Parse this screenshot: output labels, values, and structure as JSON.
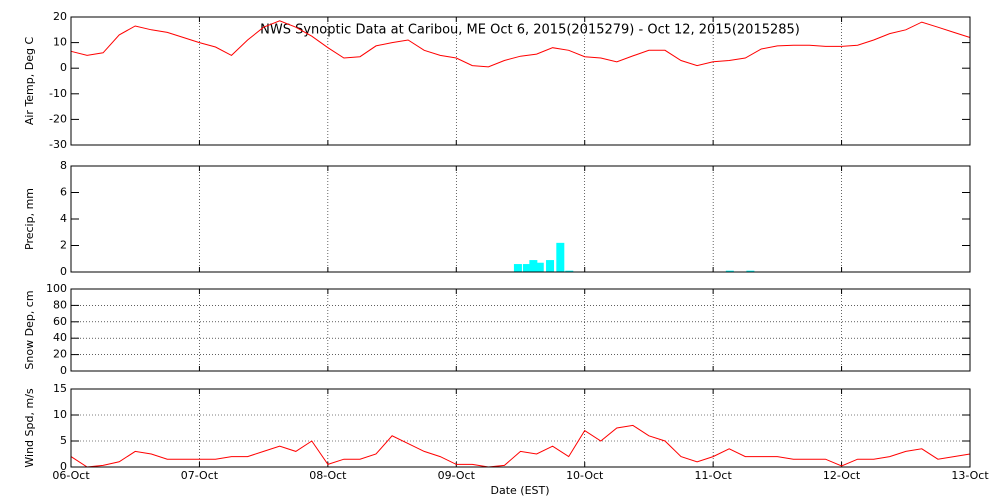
{
  "chart_data": [
    {
      "type": "line",
      "title": "NWS Synoptic Data at Caribou, ME   Oct  6, 2015(2015279) - Oct 12, 2015(2015285)",
      "ylabel": "Air Temp, Deg C",
      "ylim": [
        -30,
        20
      ],
      "yticks": [
        -30,
        -20,
        -10,
        0,
        10,
        20
      ],
      "xlim": [
        0,
        7
      ],
      "xticks": [
        0,
        1,
        2,
        3,
        4,
        5,
        6,
        7
      ],
      "grid": "x",
      "color": "#ff0000",
      "x": [
        0,
        0.125,
        0.25,
        0.375,
        0.5,
        0.625,
        0.75,
        0.875,
        1,
        1.125,
        1.25,
        1.375,
        1.5,
        1.625,
        1.75,
        1.875,
        2,
        2.125,
        2.25,
        2.375,
        2.5,
        2.625,
        2.75,
        2.875,
        3,
        3.125,
        3.25,
        3.375,
        3.5,
        3.625,
        3.75,
        3.875,
        4,
        4.125,
        4.25,
        4.375,
        4.5,
        4.625,
        4.75,
        4.875,
        5,
        5.125,
        5.25,
        5.375,
        5.5,
        5.625,
        5.75,
        5.875,
        6,
        6.125,
        6.25,
        6.375,
        6.5,
        6.625,
        6.75,
        6.875,
        7
      ],
      "values": [
        6.6,
        5,
        6,
        13,
        16.5,
        15,
        14,
        12,
        10,
        8.3,
        5,
        11,
        16,
        18.5,
        16,
        12.5,
        8,
        4,
        4.5,
        8.7,
        10,
        11,
        7,
        5,
        4,
        1,
        0.5,
        3,
        4.7,
        5.5,
        8,
        7,
        4.5,
        4,
        2.5,
        4.8,
        7,
        7,
        3,
        1,
        2.5,
        3,
        4,
        7.5,
        8.7,
        9,
        9,
        8.5,
        8.5,
        9,
        11,
        13.5,
        15,
        18,
        16,
        14,
        12
      ]
    },
    {
      "type": "bar",
      "ylabel": "Precip, mm",
      "ylim": [
        0,
        8
      ],
      "yticks": [
        0,
        2,
        4,
        6,
        8
      ],
      "xlim": [
        0,
        7
      ],
      "xticks": [
        0,
        1,
        2,
        3,
        4,
        5,
        6,
        7
      ],
      "grid": "x",
      "color": "#00ffff",
      "x": [
        3.48,
        3.55,
        3.6,
        3.65,
        3.73,
        3.81,
        3.88,
        5.13,
        5.29
      ],
      "values": [
        0.6,
        0.6,
        0.9,
        0.7,
        0.9,
        2.2,
        0.1,
        0.1,
        0.1
      ]
    },
    {
      "type": "line",
      "ylabel": "Snow Dep, cm",
      "ylim": [
        0,
        100
      ],
      "yticks": [
        0,
        20,
        40,
        60,
        80,
        100
      ],
      "xlim": [
        0,
        7
      ],
      "xticks": [
        0,
        1,
        2,
        3,
        4,
        5,
        6,
        7
      ],
      "grid": "both",
      "color": "#ff0000",
      "x": [],
      "values": []
    },
    {
      "type": "line",
      "ylabel": "Wind Spd, m/s",
      "xlabel": "Date (EST)",
      "ylim": [
        0,
        15
      ],
      "yticks": [
        0,
        5,
        10,
        15
      ],
      "xlim": [
        0,
        7
      ],
      "xticks": [
        {
          "value": 0,
          "label": "06-Oct"
        },
        {
          "value": 1,
          "label": "07-Oct"
        },
        {
          "value": 2,
          "label": "08-Oct"
        },
        {
          "value": 3,
          "label": "09-Oct"
        },
        {
          "value": 4,
          "label": "10-Oct"
        },
        {
          "value": 5,
          "label": "11-Oct"
        },
        {
          "value": 6,
          "label": "12-Oct"
        },
        {
          "value": 7,
          "label": "13-Oct"
        }
      ],
      "grid": "both",
      "color": "#ff0000",
      "x": [
        0,
        0.125,
        0.25,
        0.375,
        0.5,
        0.625,
        0.75,
        0.875,
        1,
        1.125,
        1.25,
        1.375,
        1.5,
        1.625,
        1.75,
        1.875,
        2,
        2.125,
        2.25,
        2.375,
        2.5,
        2.625,
        2.75,
        2.875,
        3,
        3.125,
        3.25,
        3.375,
        3.5,
        3.625,
        3.75,
        3.875,
        4,
        4.125,
        4.25,
        4.375,
        4.5,
        4.625,
        4.75,
        4.875,
        5,
        5.125,
        5.25,
        5.375,
        5.5,
        5.625,
        5.75,
        5.875,
        6,
        6.125,
        6.25,
        6.375,
        6.5,
        6.625,
        6.75,
        6.875,
        7
      ],
      "values": [
        2,
        0,
        0.3,
        1,
        3,
        2.5,
        1.5,
        1.5,
        1.5,
        1.5,
        2,
        2,
        3,
        4,
        3,
        5,
        0.5,
        1.5,
        1.5,
        2.5,
        6,
        4.5,
        3,
        2,
        0.5,
        0.5,
        0,
        0.3,
        3,
        2.5,
        4,
        2,
        7,
        5,
        7.5,
        8,
        6,
        5,
        2,
        1,
        2,
        3.5,
        2,
        2,
        2,
        1.5,
        1.5,
        1.5,
        0.2,
        1.5,
        1.5,
        2,
        3,
        3.5,
        1.5,
        2,
        2.5
      ]
    }
  ]
}
